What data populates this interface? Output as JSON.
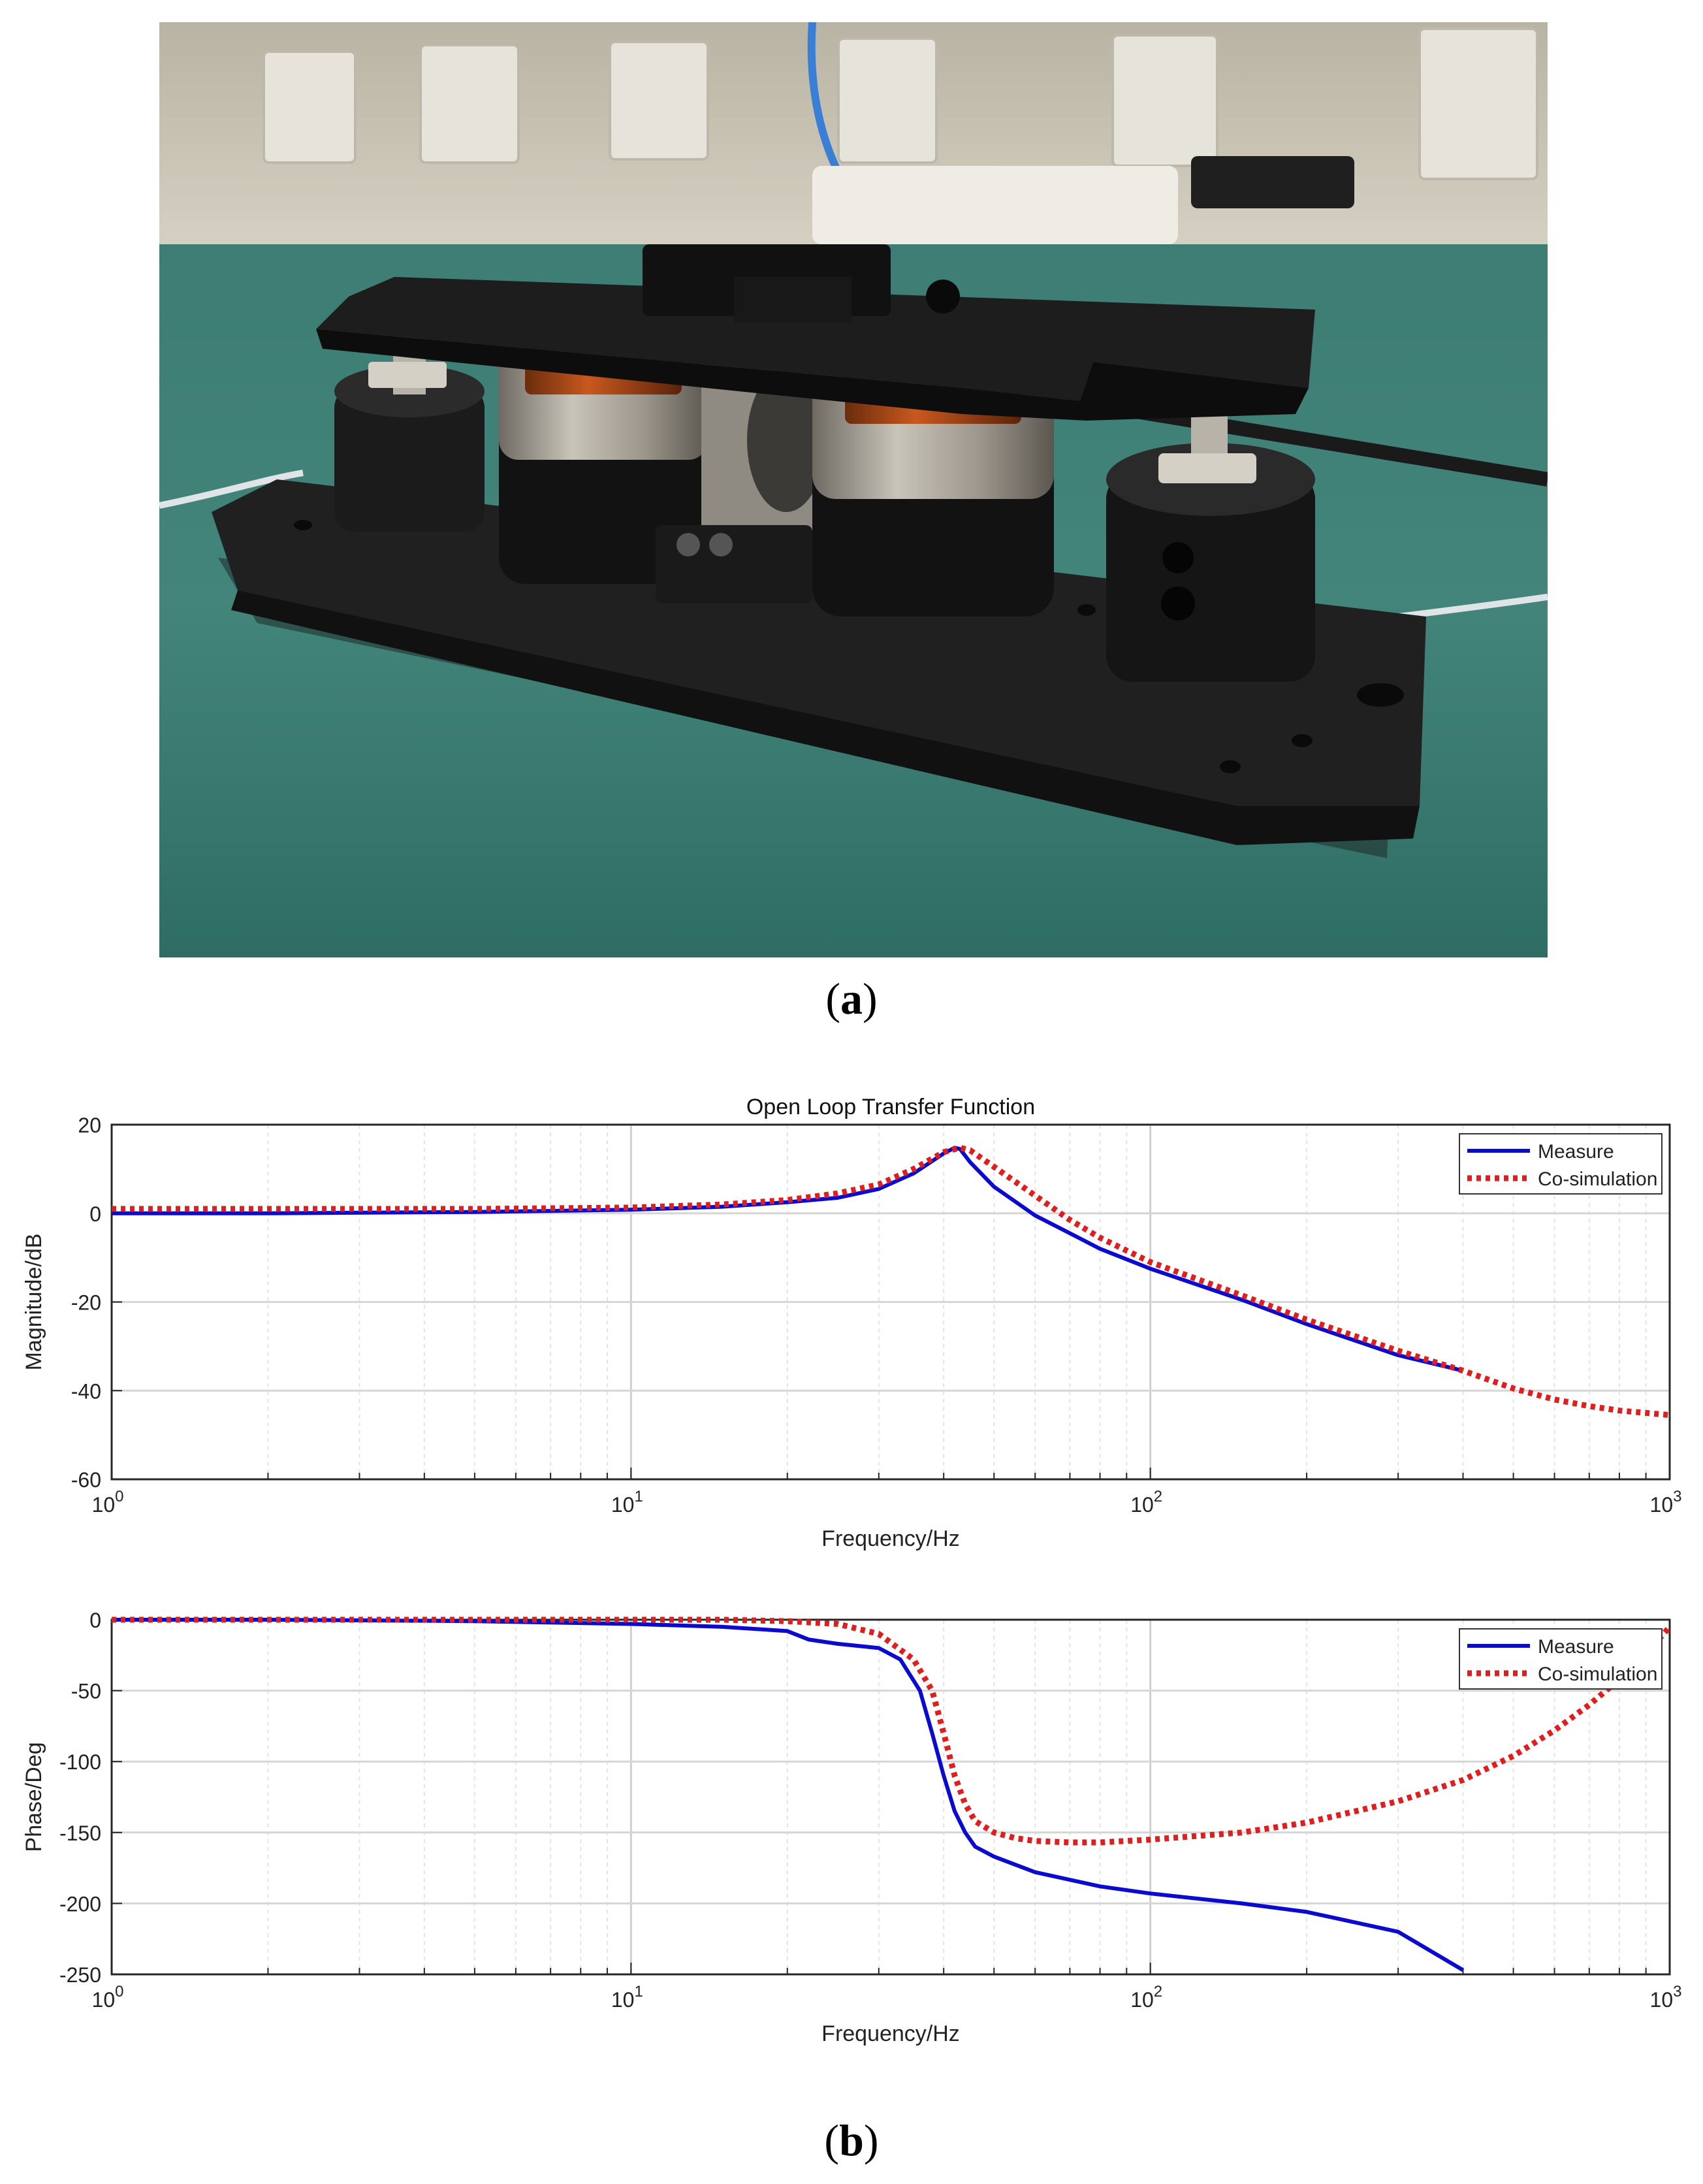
{
  "figure": {
    "caption_a_open": "(",
    "caption_a_letter": "a",
    "caption_a_close": ")",
    "caption_b_open": "(",
    "caption_b_letter": "b",
    "caption_b_close": ")"
  },
  "colors": {
    "measure": "#0b0bd0",
    "cosim": "#e01e1e",
    "grid": "#d9d9d9",
    "axis": "#262626"
  },
  "chart_data": [
    {
      "type": "line",
      "title": "Open Loop Transfer Function",
      "xlabel": "Frequency/Hz",
      "ylabel": "Magnitude/dB",
      "xscale": "log",
      "xlim": [
        1,
        1000
      ],
      "ylim": [
        -60,
        20
      ],
      "yticks": [
        -60,
        -40,
        -20,
        0,
        20
      ],
      "xticks": [
        {
          "base": "10",
          "exp": "0"
        },
        {
          "base": "10",
          "exp": "1"
        },
        {
          "base": "10",
          "exp": "2"
        },
        {
          "base": "10",
          "exp": "3"
        }
      ],
      "grid": true,
      "legend": "top-right",
      "series": [
        {
          "name": "Measure",
          "style": "solid",
          "x": [
            1,
            2,
            5,
            10,
            15,
            20,
            25,
            30,
            35,
            40,
            42,
            43,
            45,
            50,
            60,
            70,
            80,
            100,
            150,
            200,
            300,
            400
          ],
          "y": [
            0,
            0,
            0.3,
            0.8,
            1.5,
            2.5,
            3.5,
            5.5,
            9,
            13.5,
            14.8,
            14.5,
            11.5,
            6,
            -0.5,
            -4.5,
            -8,
            -12.5,
            -19.5,
            -25,
            -32,
            -35.5
          ]
        },
        {
          "name": "Co-simulation",
          "style": "dotted",
          "x": [
            1,
            2,
            5,
            10,
            15,
            20,
            25,
            30,
            35,
            40,
            43,
            45,
            50,
            60,
            70,
            80,
            100,
            150,
            200,
            300,
            400,
            500,
            600,
            700,
            800,
            1000
          ],
          "y": [
            1,
            1,
            1,
            1.3,
            2,
            3,
            4.5,
            6.5,
            10,
            13.8,
            14.8,
            14.2,
            10.5,
            4,
            -1.5,
            -5.5,
            -11,
            -18.5,
            -24,
            -31,
            -35.5,
            -39.5,
            -42,
            -43.5,
            -44.5,
            -45.5
          ]
        }
      ]
    },
    {
      "type": "line",
      "title": "",
      "xlabel": "Frequency/Hz",
      "ylabel": "Phase/Deg",
      "xscale": "log",
      "xlim": [
        1,
        1000
      ],
      "ylim": [
        -250,
        0
      ],
      "yticks": [
        -250,
        -200,
        -150,
        -100,
        -50,
        0
      ],
      "xticks": [
        {
          "base": "10",
          "exp": "0"
        },
        {
          "base": "10",
          "exp": "1"
        },
        {
          "base": "10",
          "exp": "2"
        },
        {
          "base": "10",
          "exp": "3"
        }
      ],
      "grid": true,
      "legend": "top-right",
      "series": [
        {
          "name": "Measure",
          "style": "solid",
          "x": [
            1,
            2,
            5,
            10,
            15,
            20,
            22,
            25,
            30,
            33,
            36,
            38,
            40,
            42,
            44,
            46,
            50,
            60,
            80,
            100,
            150,
            200,
            300,
            400
          ],
          "y": [
            0,
            0,
            -1,
            -3,
            -5,
            -8,
            -14,
            -17,
            -20,
            -28,
            -50,
            -80,
            -110,
            -135,
            -150,
            -160,
            -167,
            -178,
            -188,
            -193,
            -200,
            -206,
            -220,
            -247
          ]
        },
        {
          "name": "Co-simulation",
          "style": "dotted",
          "x": [
            1,
            2,
            5,
            10,
            15,
            20,
            25,
            30,
            35,
            38,
            40,
            42,
            44,
            46,
            50,
            55,
            60,
            70,
            80,
            100,
            150,
            200,
            300,
            400,
            500,
            600,
            700,
            800,
            900,
            1000
          ],
          "y": [
            0,
            0,
            0,
            0,
            0,
            -1,
            -3,
            -10,
            -28,
            -50,
            -80,
            -110,
            -130,
            -142,
            -150,
            -154,
            -156,
            -157,
            -157,
            -155,
            -150,
            -143,
            -128,
            -113,
            -96,
            -78,
            -60,
            -42,
            -24,
            -5
          ]
        }
      ]
    }
  ]
}
